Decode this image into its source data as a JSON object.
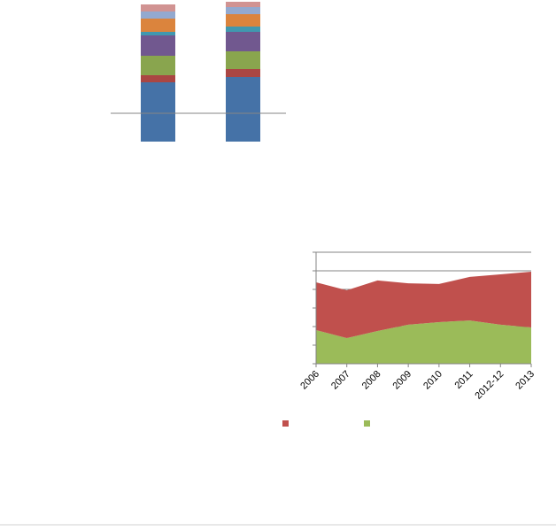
{
  "chart_data": [
    {
      "type": "stacked-bar",
      "ylim": [
        0,
        160
      ],
      "hline": 32,
      "series": [
        {
          "color": "#4572a7",
          "values": [
            67,
            73
          ]
        },
        {
          "color": "#aa4643",
          "values": [
            8,
            9
          ]
        },
        {
          "color": "#89a54e",
          "values": [
            22,
            20
          ]
        },
        {
          "color": "#71588f",
          "values": [
            23,
            22
          ]
        },
        {
          "color": "#4198af",
          "values": [
            4,
            6
          ]
        },
        {
          "color": "#db843d",
          "values": [
            15,
            14
          ]
        },
        {
          "color": "#93a9cf",
          "values": [
            8,
            8
          ]
        },
        {
          "color": "#d19392",
          "values": [
            8,
            6
          ]
        }
      ]
    },
    {
      "type": "stacked-area",
      "categories": [
        "2006",
        "2007",
        "2008",
        "2009",
        "2010",
        "2011",
        "2012-12",
        "2013"
      ],
      "ylim": [
        0,
        6
      ],
      "yticks": [
        0,
        1,
        2,
        3,
        4,
        5,
        6
      ],
      "grid": true,
      "series": [
        {
          "color": "#9bbb59",
          "values": [
            1.81,
            1.38,
            1.76,
            2.1,
            2.24,
            2.33,
            2.1,
            1.95
          ]
        },
        {
          "color": "#c0504d",
          "values": [
            2.57,
            2.57,
            2.72,
            2.23,
            2.05,
            2.34,
            2.71,
            3.0
          ]
        }
      ]
    }
  ]
}
